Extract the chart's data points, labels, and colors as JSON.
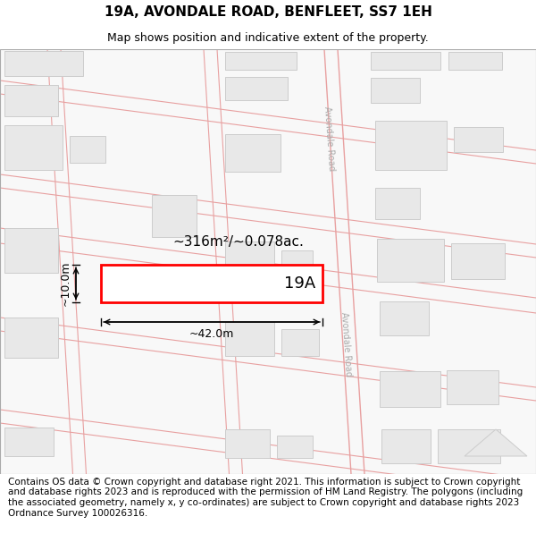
{
  "title": "19A, AVONDALE ROAD, BENFLEET, SS7 1EH",
  "subtitle": "Map shows position and indicative extent of the property.",
  "footer": "Contains OS data © Crown copyright and database right 2021. This information is subject to Crown copyright and database rights 2023 and is reproduced with the permission of HM Land Registry. The polygons (including the associated geometry, namely x, y co-ordinates) are subject to Crown copyright and database rights 2023 Ordnance Survey 100026316.",
  "road_line_color": "#e8a0a0",
  "building_color": "#e8e8e8",
  "building_edge": "#cccccc",
  "highlight_color": "#ff0000",
  "road_label": "Avondale Road",
  "property_label": "19A",
  "area_label": "~316m²/~0.078ac.",
  "width_label": "~42.0m",
  "height_label": "~10.0m",
  "title_fontsize": 11,
  "subtitle_fontsize": 9,
  "footer_fontsize": 7.5
}
